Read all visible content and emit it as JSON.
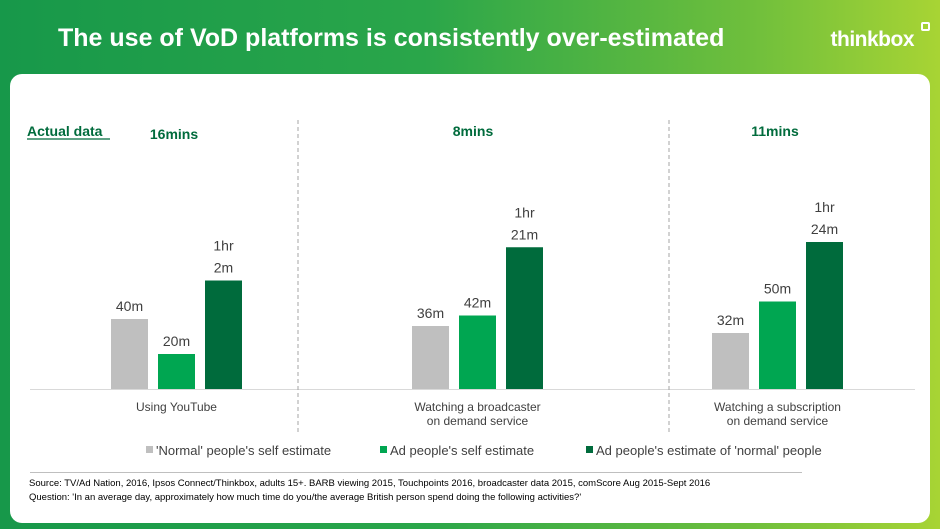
{
  "header": {
    "title": "The use of VoD platforms is consistently over-estimated",
    "brand": "thinkbox"
  },
  "chart_data": {
    "type": "bar",
    "annotation_label": "Actual data",
    "categories": [
      "Using YouTube",
      "Watching a broadcaster on demand service",
      "Watching a subscription on demand service"
    ],
    "category_lines": [
      [
        "Using YouTube"
      ],
      [
        "Watching a broadcaster",
        "on demand service"
      ],
      [
        "Watching a subscription",
        "on demand service"
      ]
    ],
    "actual_values": [
      "16mins",
      "8mins",
      "11mins"
    ],
    "series": [
      {
        "name": "'Normal' people's self estimate",
        "values": [
          40,
          36,
          32
        ],
        "labels": [
          [
            "40m"
          ],
          [
            "36m"
          ],
          [
            "32m"
          ]
        ],
        "color": "#bfbfbf"
      },
      {
        "name": "Ad people's self estimate",
        "values": [
          20,
          42,
          50
        ],
        "labels": [
          [
            "20m"
          ],
          [
            "42m"
          ],
          [
            "50m"
          ]
        ],
        "color": "#00a651"
      },
      {
        "name": "Ad people's estimate of 'normal' people",
        "values": [
          62,
          81,
          84
        ],
        "labels": [
          [
            "1hr",
            "2m"
          ],
          [
            "1hr",
            "21m"
          ],
          [
            "1hr",
            "24m"
          ]
        ],
        "color": "#006b3c"
      }
    ],
    "unit": "minutes",
    "legend_position": "bottom",
    "grid": false
  },
  "footer": {
    "source": "Source: TV/Ad Nation,  2016,  Ipsos Connect/Thinkbox,  adults 15+.  BARB viewing 2015, Touchpoints 2016, broadcaster data 2015, comScore Aug 2015-Sept 2016",
    "question": "Question: 'In an average day, approximately how much time do you/the average British person spend doing the following activities?'"
  }
}
